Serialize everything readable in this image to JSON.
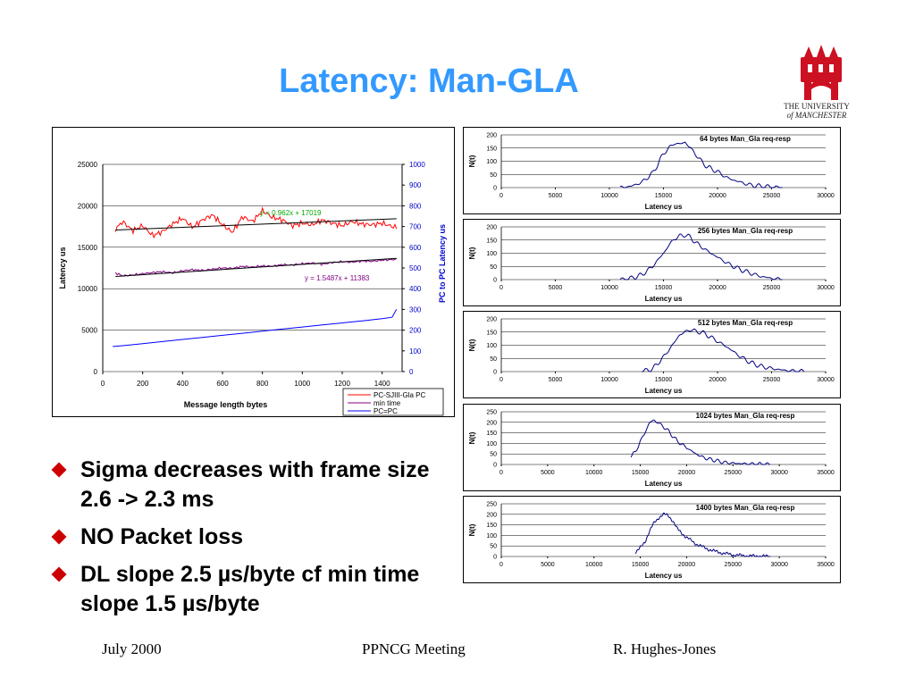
{
  "slide": {
    "title": "Latency: Man-GLA",
    "logo_text": [
      "THE UNIVERSITY",
      "of MANCHESTER"
    ],
    "bullets": [
      "Sigma decreases with frame size 2.6 -> 2.3 ms",
      "NO Packet loss",
      "DL slope 2.5 µs/byte cf  min time slope 1.5 µs/byte"
    ],
    "footer": {
      "left": "July 2000",
      "center": "PPNCG Meeting",
      "right": "R. Hughes-Jones"
    },
    "colors": {
      "title": "#3399ff",
      "bullet_marker": "#cc0000",
      "series_red": "#ff0000",
      "series_purple": "#800080",
      "series_blue": "#0000ff",
      "hist_line": "#000080"
    }
  },
  "chart_data": [
    {
      "type": "line",
      "xlabel": "Message length bytes",
      "ylabel": "Latency us",
      "y2label": "PC to PC Latency us",
      "xlim": [
        0,
        1500
      ],
      "ylim": [
        0,
        25000
      ],
      "y2lim": [
        0,
        1000
      ],
      "xticks": [
        "0",
        "200",
        "400",
        "600",
        "800",
        "1000",
        "1200",
        "1400"
      ],
      "yticks": [
        "0",
        "5000",
        "10000",
        "15000",
        "20000",
        "25000"
      ],
      "y2ticks": [
        "0",
        "100",
        "200",
        "300",
        "400",
        "500",
        "600",
        "700",
        "800",
        "900",
        "1000"
      ],
      "legend": [
        "PC-SJIII-Gla PC",
        " min time",
        "PC=PC"
      ],
      "annotations": [
        "y = 0.962x + 17019",
        "y = 1.5487x + 11383"
      ],
      "series": [
        {
          "name": "PC-SJIII-Gla PC",
          "axis": "left",
          "x": [
            64,
            100,
            150,
            200,
            250,
            300,
            350,
            400,
            450,
            500,
            550,
            600,
            650,
            700,
            750,
            800,
            850,
            900,
            950,
            1000,
            1050,
            1100,
            1150,
            1200,
            1250,
            1300,
            1350,
            1400,
            1450,
            1472
          ],
          "y": [
            17200,
            18100,
            17000,
            17600,
            16400,
            16900,
            17800,
            18500,
            17400,
            18300,
            18900,
            17700,
            16800,
            18700,
            18100,
            19400,
            18600,
            18300,
            17600,
            17900,
            17700,
            18300,
            17900,
            17600,
            18100,
            17800,
            17700,
            17900,
            17500,
            17400
          ],
          "trend": [
            0.962,
            17019
          ]
        },
        {
          "name": " min time",
          "axis": "left",
          "x": [
            64,
            100,
            150,
            200,
            250,
            300,
            350,
            400,
            450,
            500,
            550,
            600,
            650,
            700,
            750,
            800,
            850,
            900,
            950,
            1000,
            1050,
            1100,
            1150,
            1200,
            1250,
            1300,
            1350,
            1400,
            1450,
            1472
          ],
          "y": [
            11900,
            11550,
            11650,
            11800,
            11950,
            12050,
            11900,
            12150,
            12300,
            12200,
            12350,
            12500,
            12450,
            12700,
            12600,
            12750,
            12700,
            12900,
            12850,
            13000,
            13100,
            12950,
            13150,
            13250,
            13200,
            13350,
            13300,
            13450,
            13500,
            13550
          ],
          "trend": [
            1.5487,
            11383
          ]
        },
        {
          "name": "PC=PC",
          "axis": "right",
          "x": [
            50,
            100,
            200,
            300,
            400,
            500,
            600,
            700,
            800,
            900,
            1000,
            1100,
            1200,
            1300,
            1400,
            1450,
            1472
          ],
          "y": [
            121,
            125,
            135,
            145,
            155,
            165,
            175,
            185,
            195,
            205,
            215,
            225,
            235,
            245,
            255,
            262,
            300
          ]
        }
      ]
    },
    {
      "type": "line",
      "title": "64 bytes Man_Gla req-resp",
      "xlabel": "Latency us",
      "ylabel": "N(t)",
      "xlim": [
        0,
        30000
      ],
      "ylim": [
        0,
        200
      ],
      "xticks": [
        "0",
        "5000",
        "10000",
        "15000",
        "20000",
        "25000",
        "30000"
      ],
      "yticks": [
        "0",
        "50",
        "100",
        "150",
        "200"
      ],
      "x": [
        11000,
        12000,
        13000,
        14000,
        14500,
        15000,
        15500,
        16000,
        16500,
        17000,
        17500,
        18000,
        18500,
        19000,
        20000,
        21000,
        22000,
        23000,
        24000,
        25000,
        26000
      ],
      "y": [
        0,
        5,
        20,
        55,
        90,
        130,
        150,
        168,
        165,
        172,
        150,
        125,
        100,
        80,
        60,
        35,
        22,
        10,
        5,
        2,
        0
      ]
    },
    {
      "type": "line",
      "title": "256 bytes Man_Gla req-resp",
      "xlabel": "Latency us",
      "ylabel": "N(t)",
      "xlim": [
        0,
        30000
      ],
      "ylim": [
        0,
        200
      ],
      "xticks": [
        "0",
        "5000",
        "10000",
        "15000",
        "20000",
        "25000",
        "30000"
      ],
      "yticks": [
        "0",
        "50",
        "100",
        "150",
        "200"
      ],
      "x": [
        11000,
        12000,
        13000,
        14000,
        15000,
        15500,
        16000,
        16500,
        17000,
        17500,
        18000,
        19000,
        20000,
        21000,
        22000,
        23000,
        24000,
        25000,
        26000
      ],
      "y": [
        0,
        5,
        18,
        50,
        100,
        130,
        155,
        165,
        170,
        160,
        140,
        110,
        85,
        60,
        40,
        25,
        12,
        5,
        0
      ]
    },
    {
      "type": "line",
      "title": "512 bytes Man_Gla req-resp",
      "xlabel": "Latency us",
      "ylabel": "N(t)",
      "xlim": [
        0,
        30000
      ],
      "ylim": [
        0,
        200
      ],
      "xticks": [
        "0",
        "5000",
        "10000",
        "15000",
        "20000",
        "25000",
        "30000"
      ],
      "yticks": [
        "0",
        "50",
        "100",
        "150",
        "200"
      ],
      "x": [
        13000,
        14000,
        15000,
        16000,
        16500,
        17000,
        17500,
        18000,
        18500,
        19000,
        20000,
        21000,
        22000,
        23000,
        24000,
        25000,
        26000,
        27000,
        28000
      ],
      "y": [
        0,
        10,
        55,
        110,
        140,
        150,
        160,
        152,
        150,
        140,
        115,
        90,
        60,
        35,
        20,
        12,
        6,
        2,
        0
      ]
    },
    {
      "type": "line",
      "title": "1024 bytes Man_Gla req-resp",
      "xlabel": "Latency us",
      "ylabel": "N(t)",
      "xlim": [
        0,
        35000
      ],
      "ylim": [
        0,
        250
      ],
      "xticks": [
        "0",
        "5000",
        "10000",
        "15000",
        "20000",
        "25000",
        "30000",
        "35000"
      ],
      "yticks": [
        "0",
        "50",
        "100",
        "150",
        "200",
        "250"
      ],
      "x": [
        14000,
        14500,
        15000,
        15500,
        16000,
        16500,
        17000,
        17500,
        18000,
        19000,
        20000,
        21000,
        22000,
        23000,
        24000,
        25000,
        26000,
        27000,
        28000,
        29000
      ],
      "y": [
        40,
        60,
        110,
        150,
        200,
        210,
        195,
        180,
        160,
        110,
        80,
        50,
        30,
        20,
        10,
        6,
        4,
        2,
        1,
        0
      ]
    },
    {
      "type": "line",
      "title": "1400 bytes Man_Gla req-resp",
      "xlabel": "Latency us",
      "ylabel": "N(t)",
      "xlim": [
        0,
        35000
      ],
      "ylim": [
        0,
        250
      ],
      "xticks": [
        "0",
        "5000",
        "10000",
        "15000",
        "20000",
        "25000",
        "30000",
        "35000"
      ],
      "yticks": [
        "0",
        "50",
        "100",
        "150",
        "200",
        "250"
      ],
      "x": [
        14500,
        15000,
        15500,
        16000,
        16500,
        17000,
        17500,
        18000,
        18500,
        19000,
        20000,
        21000,
        22000,
        23000,
        24000,
        25000,
        26000,
        27000,
        28000,
        29000
      ],
      "y": [
        20,
        40,
        70,
        120,
        160,
        185,
        200,
        195,
        170,
        130,
        90,
        60,
        40,
        25,
        15,
        8,
        4,
        2,
        1,
        0
      ]
    }
  ]
}
